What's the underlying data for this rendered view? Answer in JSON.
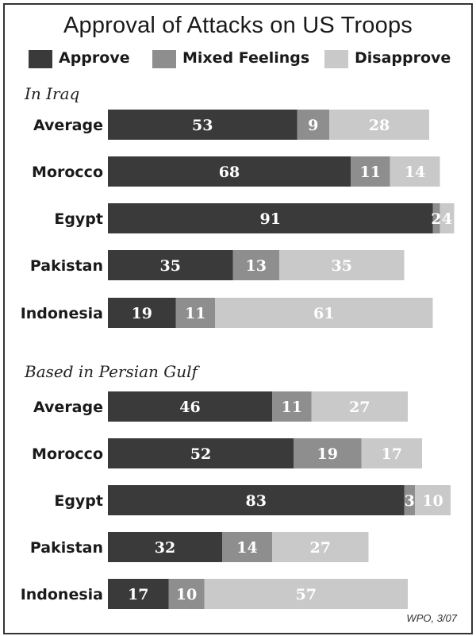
{
  "chart_data": {
    "type": "bar",
    "orientation": "horizontal",
    "stacked": true,
    "title": "Approval of Attacks on US Troops",
    "colors": {
      "Approve": "#3a3a3a",
      "Mixed Feelings": "#8e8e8e",
      "Disapprove": "#c9c9c9"
    },
    "legend": {
      "position": "top",
      "entries": [
        "Approve",
        "Mixed Feelings",
        "Disapprove"
      ]
    },
    "groups": [
      {
        "label": "In Iraq",
        "categories": [
          "Average",
          "Morocco",
          "Egypt",
          "Pakistan",
          "Indonesia"
        ],
        "series": [
          {
            "name": "Approve",
            "values": [
              53,
              68,
              91,
              35,
              19
            ]
          },
          {
            "name": "Mixed Feelings",
            "values": [
              9,
              11,
              2,
              13,
              11
            ]
          },
          {
            "name": "Disapprove",
            "values": [
              28,
              14,
              4,
              35,
              61
            ]
          }
        ]
      },
      {
        "label": "Based in Persian Gulf",
        "categories": [
          "Average",
          "Morocco",
          "Egypt",
          "Pakistan",
          "Indonesia"
        ],
        "series": [
          {
            "name": "Approve",
            "values": [
              46,
              52,
              83,
              32,
              17
            ]
          },
          {
            "name": "Mixed Feelings",
            "values": [
              11,
              19,
              3,
              14,
              10
            ]
          },
          {
            "name": "Disapprove",
            "values": [
              27,
              17,
              10,
              27,
              57
            ]
          }
        ]
      }
    ],
    "xlim": [
      0,
      100
    ],
    "grid": false
  },
  "source_note": "WPO, 3/07"
}
